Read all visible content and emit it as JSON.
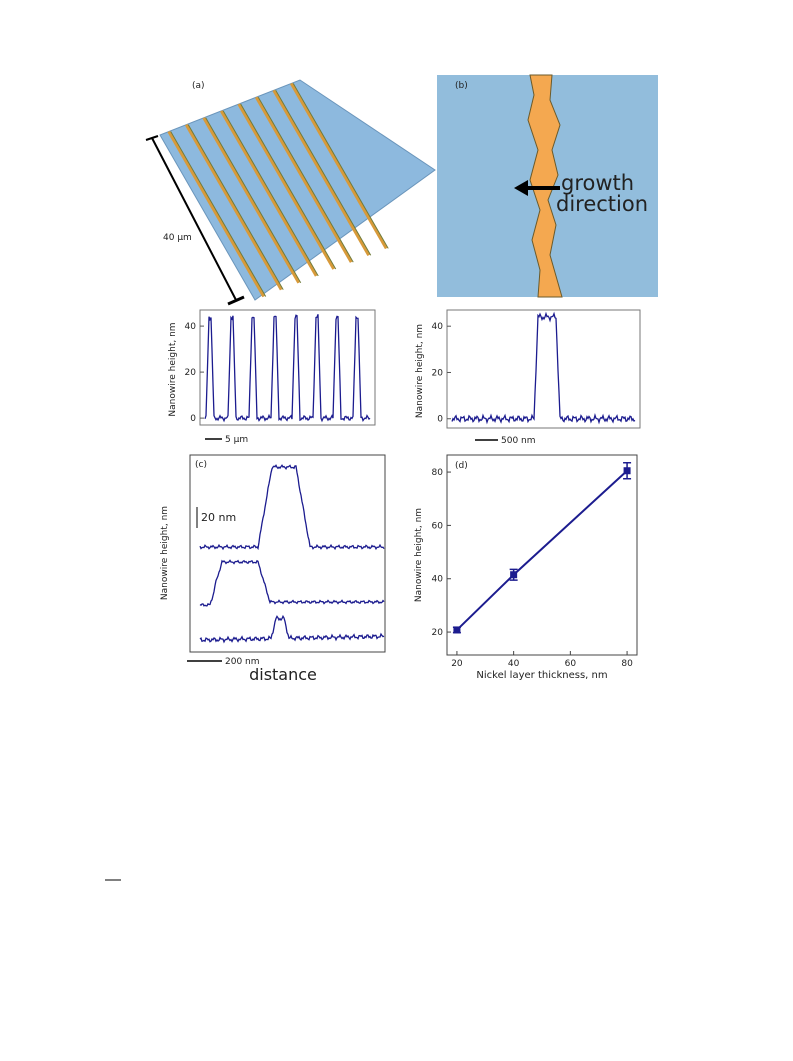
{
  "panels": {
    "a": {
      "label": "(a)",
      "scale": "40 µm"
    },
    "b": {
      "label": "(b)",
      "annotation": [
        "growth",
        "direction"
      ]
    }
  },
  "chart_data": [
    {
      "type": "profile",
      "ylabel": "Nanowire height, nm",
      "ylim": [
        -3,
        47
      ],
      "yticks": [
        0,
        20,
        40
      ],
      "scale_bar": "5 µm"
    },
    {
      "type": "profile",
      "ylabel": "Nanowire height, nm",
      "ylim": [
        -4,
        47
      ],
      "yticks": [
        0,
        20,
        40
      ],
      "scale_bar": "500 nm"
    },
    {
      "type": "stacked-profile",
      "label": "(c)",
      "ylabel": "Nanowire height, nm",
      "offset_label": "20 nm",
      "scale_bar": "200 nm",
      "xlabel": "distance"
    },
    {
      "type": "scatter",
      "label": "(d)",
      "xlabel": "Nickel  layer thickness, nm",
      "ylabel": "Nanowire height, nm",
      "x": [
        20,
        40,
        80
      ],
      "values": [
        20.8,
        41.5,
        80.5
      ],
      "errors": [
        1,
        2,
        3
      ],
      "color": "#1c1c8f",
      "xlim": [
        16.5,
        83.5
      ],
      "ylim": [
        11.4,
        86.4
      ],
      "xticks": [
        20,
        40,
        60,
        80
      ],
      "yticks": [
        20,
        40,
        60,
        80
      ]
    }
  ]
}
